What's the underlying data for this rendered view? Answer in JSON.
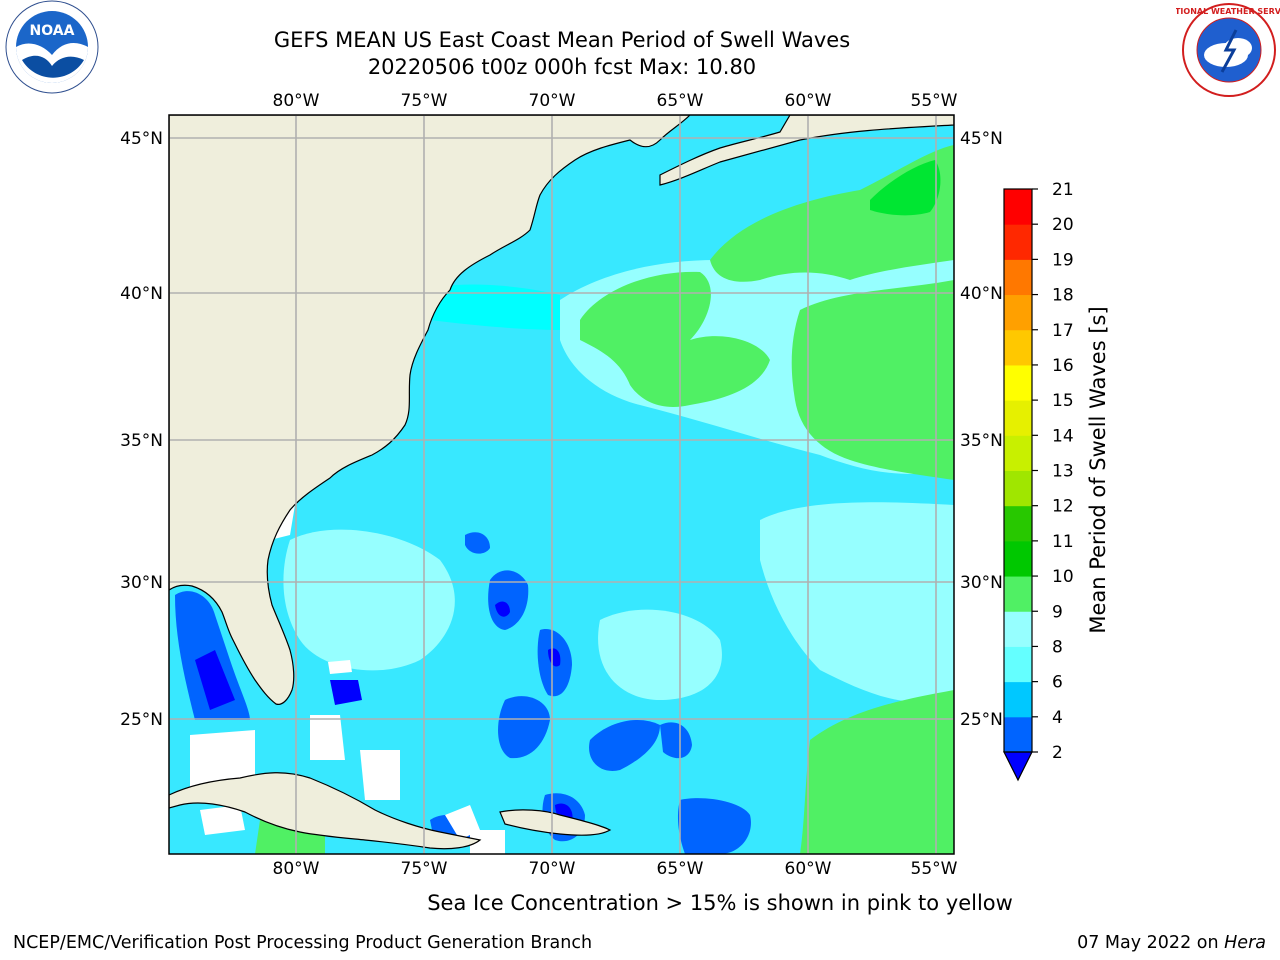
{
  "header": {
    "title_line1": "GEFS MEAN US East Coast Mean Period of Swell Waves",
    "title_line2": "20220506 t00z 000h fcst   Max: 10.80"
  },
  "logos": {
    "left": "NOAA",
    "right_ring_text": "NATIONAL WEATHER SERVICE"
  },
  "map": {
    "projection": "PlateCarree",
    "lon_range": [
      -85,
      -54
    ],
    "lat_range": [
      20.5,
      45.8
    ],
    "lon_ticks": [
      "80°W",
      "75°W",
      "70°W",
      "65°W",
      "60°W",
      "55°W"
    ],
    "lat_ticks": [
      "45°N",
      "40°N",
      "35°N",
      "30°N",
      "25°N"
    ],
    "land_color": "#efeedc",
    "grid_color": "#b0b0b0",
    "dominant_field_levels_s": "6-8 s over most of the basin, 8-10 s in the north-east and south-east, 2-4 s patches near the Bahamas"
  },
  "colorbar": {
    "label": "Mean Period of Swell Waves [s]",
    "ticks": [
      "2",
      "4",
      "6",
      "8",
      "9",
      "10",
      "11",
      "12",
      "13",
      "14",
      "15",
      "16",
      "17",
      "18",
      "19",
      "20",
      "21"
    ],
    "colors": [
      "#0064ff",
      "#00c8ff",
      "#00ffff",
      "#64ffff",
      "#96ffff",
      "#50f064",
      "#00e632",
      "#00c800",
      "#28c800",
      "#64d200",
      "#a0e600",
      "#c8f000",
      "#e6f000",
      "#ffff00",
      "#ffe600",
      "#ffc800",
      "#ffa000",
      "#ff7800",
      "#ff5000",
      "#ff2800",
      "#ff0000"
    ],
    "under_color": "#0000ff"
  },
  "footer": {
    "note": "Sea Ice Concentration > 15% is shown in pink to yellow",
    "credit": "NCEP/EMC/Verification Post Processing Product Generation Branch",
    "date": "07 May 2022 on ",
    "machine": "Hera"
  }
}
